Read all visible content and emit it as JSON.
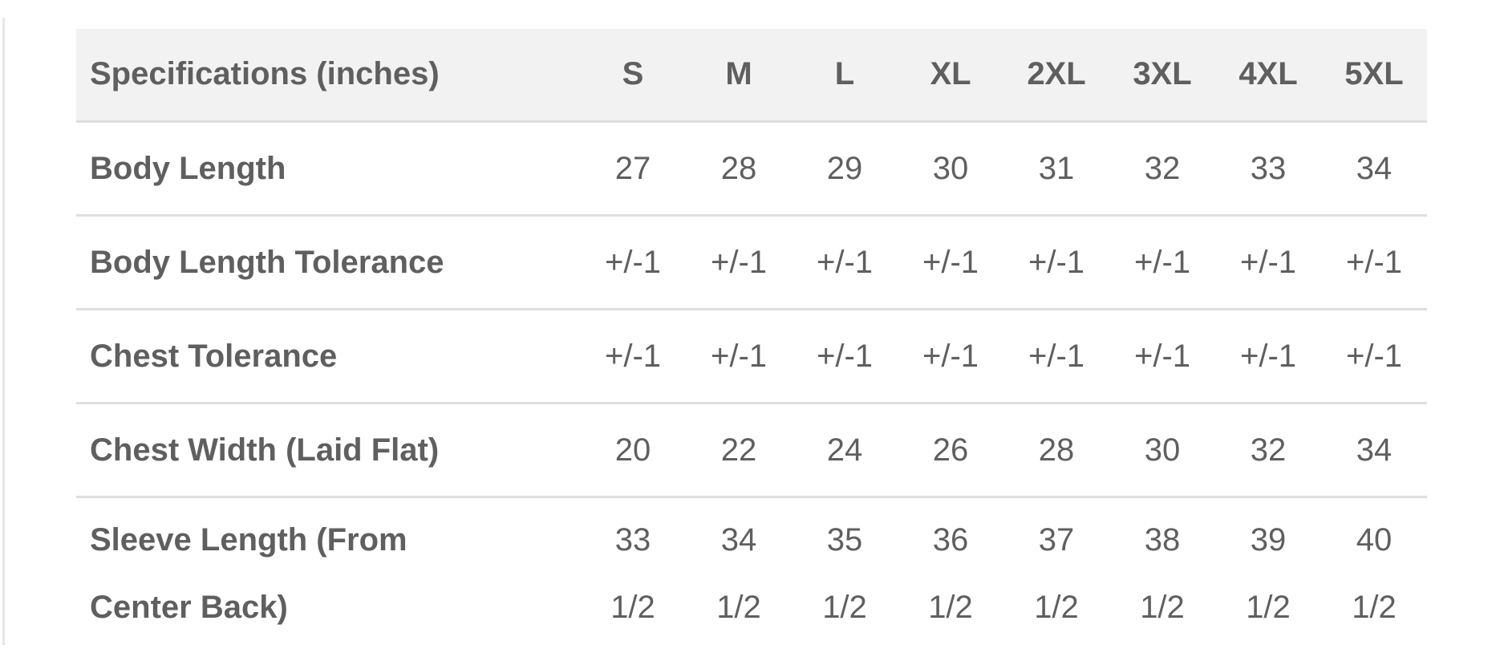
{
  "table": {
    "header": "Specifications (inches)",
    "sizes": [
      "S",
      "M",
      "L",
      "XL",
      "2XL",
      "3XL",
      "4XL",
      "5XL"
    ],
    "rows": [
      {
        "label": "Body Length",
        "values": [
          "27",
          "28",
          "29",
          "30",
          "31",
          "32",
          "33",
          "34"
        ]
      },
      {
        "label": "Body Length Tolerance",
        "values": [
          "+/-1",
          "+/-1",
          "+/-1",
          "+/-1",
          "+/-1",
          "+/-1",
          "+/-1",
          "+/-1"
        ]
      },
      {
        "label": "Chest Tolerance",
        "values": [
          "+/-1",
          "+/-1",
          "+/-1",
          "+/-1",
          "+/-1",
          "+/-1",
          "+/-1",
          "+/-1"
        ]
      },
      {
        "label": "Chest Width (Laid Flat)",
        "values": [
          "20",
          "22",
          "24",
          "26",
          "28",
          "30",
          "32",
          "34"
        ]
      },
      {
        "label": "Sleeve Length (From Center Back)",
        "values": [
          "33 1/2",
          "34 1/2",
          "35 1/2",
          "36 1/2",
          "37 1/2",
          "38 1/2",
          "39 1/2",
          "40 1/2"
        ]
      }
    ]
  }
}
